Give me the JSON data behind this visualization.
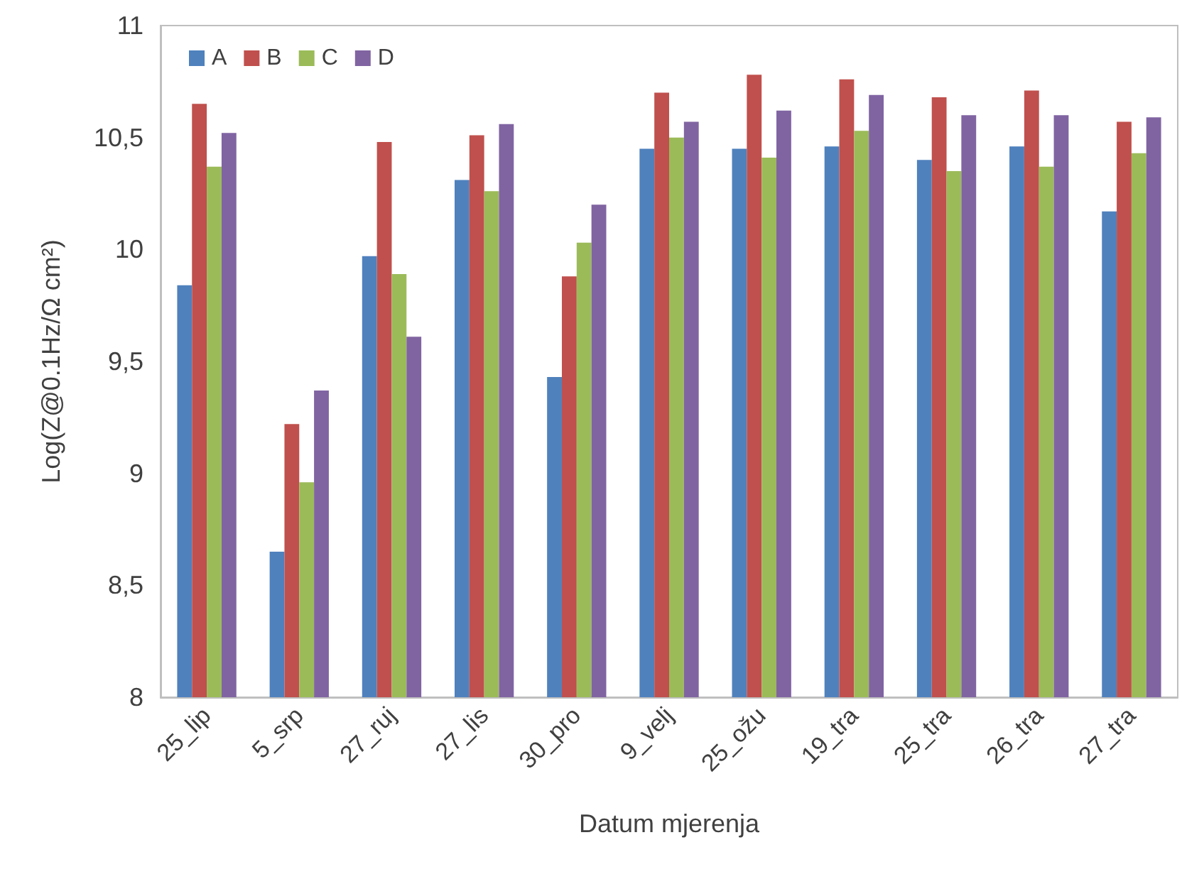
{
  "chart_data": {
    "type": "bar",
    "xlabel": "Datum mjerenja",
    "ylabel": "Log(Z@0.1Hz/Ω cm²)",
    "categories": [
      "25_lip",
      "5_srp",
      "27_ruj",
      "27_lis",
      "30_pro",
      "9_velj",
      "25_ožu",
      "19_tra",
      "25_tra",
      "26_tra",
      "27_tra"
    ],
    "series": [
      {
        "name": "A",
        "color": "#4f81bd",
        "values": [
          9.84,
          8.65,
          9.97,
          10.31,
          9.43,
          10.45,
          10.45,
          10.46,
          10.4,
          10.46,
          10.17
        ]
      },
      {
        "name": "B",
        "color": "#c0504d",
        "values": [
          10.65,
          9.22,
          10.48,
          10.51,
          9.88,
          10.7,
          10.78,
          10.76,
          10.68,
          10.71,
          10.57
        ]
      },
      {
        "name": "C",
        "color": "#9bbb59",
        "values": [
          10.37,
          8.96,
          9.89,
          10.26,
          10.03,
          10.5,
          10.41,
          10.53,
          10.35,
          10.37,
          10.43
        ]
      },
      {
        "name": "D",
        "color": "#8064a2",
        "values": [
          10.52,
          9.37,
          9.61,
          10.56,
          10.2,
          10.57,
          10.62,
          10.69,
          10.6,
          10.6,
          10.59
        ]
      }
    ],
    "ylim": [
      8,
      11
    ],
    "yticks": [
      8,
      {
        "value": 8.5,
        "label": "8,5"
      },
      9,
      {
        "value": 9.5,
        "label": "9,5"
      },
      10,
      {
        "value": 10.5,
        "label": "10,5"
      },
      11
    ],
    "grid": false,
    "legend": "top left"
  }
}
